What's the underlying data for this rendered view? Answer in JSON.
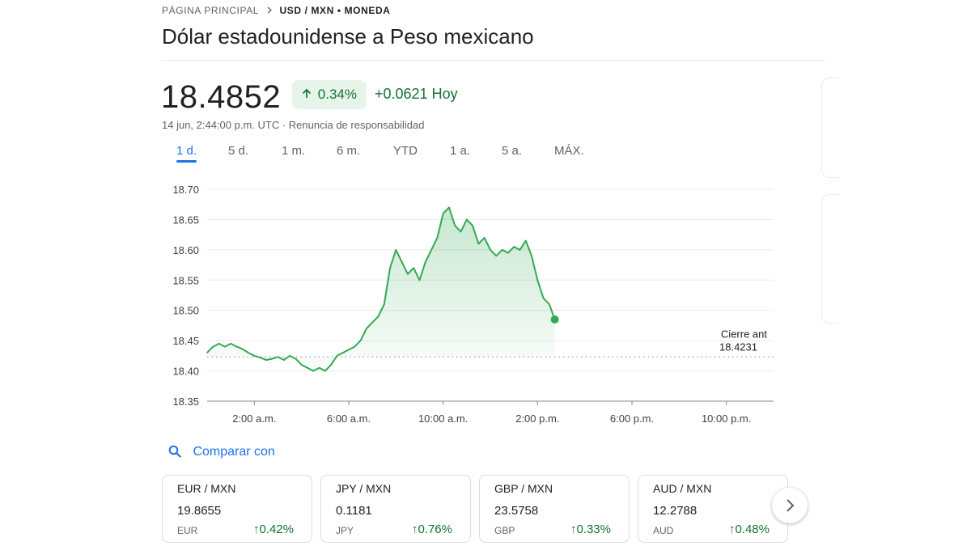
{
  "breadcrumb": {
    "home": "PÁGINA PRINCIPAL",
    "current": "USD / MXN • MONEDA"
  },
  "title": "Dólar estadounidense a Peso mexicano",
  "quote": {
    "price": "18.4852",
    "change_pct": "0.34%",
    "change_abs": "+0.0621 Hoy",
    "timestamp": "14 jun, 2:44:00 p.m. UTC · Renuncia de responsabilidad"
  },
  "ranges": [
    "1 d.",
    "5 d.",
    "1 m.",
    "6 m.",
    "YTD",
    "1 a.",
    "5 a.",
    "MÁX."
  ],
  "active_range": "1 d.",
  "colors": {
    "up": "#34a853",
    "up_text": "#137333",
    "up_bg": "#e6f4ea",
    "accent": "#1a73e8"
  },
  "chart_data": {
    "type": "area",
    "x_unit": "hours since 00:00 UTC",
    "ylim": [
      18.35,
      18.7
    ],
    "yticks": [
      18.7,
      18.65,
      18.6,
      18.55,
      18.5,
      18.45,
      18.4,
      18.35
    ],
    "xticks": [
      {
        "at": 2,
        "label": "2:00 a.m."
      },
      {
        "at": 6,
        "label": "6:00 a.m."
      },
      {
        "at": 10,
        "label": "10:00 a.m."
      },
      {
        "at": 14,
        "label": "2:00 p.m."
      },
      {
        "at": 18,
        "label": "6:00 p.m."
      },
      {
        "at": 22,
        "label": "10:00 p.m."
      }
    ],
    "xlim": [
      0,
      24
    ],
    "previous_close": {
      "label": "Cierre ant",
      "value": 18.4231,
      "value_text": "18.4231"
    },
    "series": [
      {
        "x": [
          0,
          0.25,
          0.5,
          0.75,
          1.0,
          1.25,
          1.5,
          1.75,
          2.0,
          2.25,
          2.5,
          2.75,
          3.0,
          3.25,
          3.5,
          3.75,
          4.0,
          4.25,
          4.5,
          4.75,
          5.0,
          5.25,
          5.5,
          5.75,
          6.0,
          6.25,
          6.5,
          6.75,
          7.0,
          7.25,
          7.5,
          7.75,
          8.0,
          8.25,
          8.5,
          8.75,
          9.0,
          9.25,
          9.5,
          9.75,
          10.0,
          10.25,
          10.5,
          10.75,
          11.0,
          11.25,
          11.5,
          11.75,
          12.0,
          12.25,
          12.5,
          12.75,
          13.0,
          13.25,
          13.5,
          13.75,
          14.0,
          14.25,
          14.5,
          14.73
        ],
        "y": [
          18.43,
          18.44,
          18.445,
          18.44,
          18.445,
          18.44,
          18.436,
          18.43,
          18.425,
          18.422,
          18.418,
          18.42,
          18.423,
          18.418,
          18.425,
          18.42,
          18.41,
          18.405,
          18.4,
          18.405,
          18.4,
          18.41,
          18.425,
          18.43,
          18.435,
          18.44,
          18.45,
          18.47,
          18.48,
          18.49,
          18.51,
          18.57,
          18.6,
          18.58,
          18.56,
          18.57,
          18.55,
          18.58,
          18.6,
          18.62,
          18.66,
          18.67,
          18.64,
          18.63,
          18.65,
          18.64,
          18.61,
          18.62,
          18.6,
          18.59,
          18.6,
          18.595,
          18.605,
          18.6,
          18.615,
          18.59,
          18.55,
          18.52,
          18.51,
          18.485
        ]
      }
    ]
  },
  "compare_label": "Comparar con",
  "related": [
    {
      "pair": "EUR / MXN",
      "value": "19.8655",
      "currency": "EUR",
      "change": "0.42%"
    },
    {
      "pair": "JPY / MXN",
      "value": "0.1181",
      "currency": "JPY",
      "change": "0.76%"
    },
    {
      "pair": "GBP / MXN",
      "value": "23.5758",
      "currency": "GBP",
      "change": "0.33%"
    },
    {
      "pair": "AUD / MXN",
      "value": "12.2788",
      "currency": "AUD",
      "change": "0.48%"
    }
  ],
  "icons": {
    "up": "arrow-up-icon",
    "search": "search-icon",
    "next": "chevron-right-icon",
    "breadcrumb": "chevron-right-small-icon"
  }
}
